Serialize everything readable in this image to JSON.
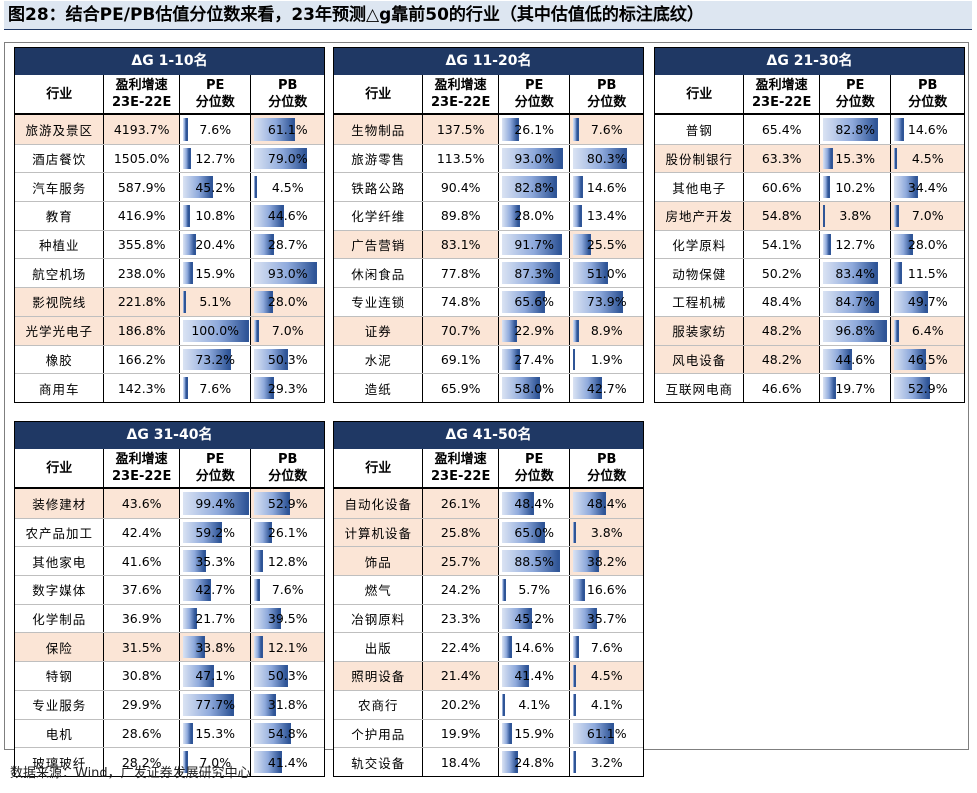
{
  "title": "图28：结合PE/PB估值分位数来看，23年预测△g靠前50的行业（其中估值低的标注底纹）",
  "headers": {
    "industry": "行业",
    "growth": "盈利增速\n23E-22E",
    "pe": "PE\n分位数",
    "pb": "PB\n分位数"
  },
  "source": "数据来源：Wind，广发证券发展研究中心",
  "colors": {
    "header_bg": "#1f3864",
    "highlight": "#fbe5d6",
    "bar_dark": "#2f5597",
    "bar_light": "#dae3f3"
  },
  "panels": [
    {
      "title": "ΔG 1-10名",
      "rows": [
        {
          "industry": "旅游及景区",
          "growth": "4193.7%",
          "pe": "7.6%",
          "pb": "61.1%",
          "pe_hl": false,
          "pb_hl": true,
          "name_hl": true
        },
        {
          "industry": "酒店餐饮",
          "growth": "1505.0%",
          "pe": "12.7%",
          "pb": "79.0%",
          "pe_hl": false,
          "pb_hl": false,
          "name_hl": false
        },
        {
          "industry": "汽车服务",
          "growth": "587.9%",
          "pe": "45.2%",
          "pb": "4.5%",
          "pe_hl": false,
          "pb_hl": false,
          "name_hl": false
        },
        {
          "industry": "教育",
          "growth": "416.9%",
          "pe": "10.8%",
          "pb": "44.6%",
          "pe_hl": false,
          "pb_hl": false,
          "name_hl": false
        },
        {
          "industry": "种植业",
          "growth": "355.8%",
          "pe": "20.4%",
          "pb": "28.7%",
          "pe_hl": false,
          "pb_hl": false,
          "name_hl": false
        },
        {
          "industry": "航空机场",
          "growth": "238.0%",
          "pe": "15.9%",
          "pb": "93.0%",
          "pe_hl": false,
          "pb_hl": false,
          "name_hl": false
        },
        {
          "industry": "影视院线",
          "growth": "221.8%",
          "pe": "5.1%",
          "pb": "28.0%",
          "pe_hl": true,
          "pb_hl": true,
          "name_hl": true
        },
        {
          "industry": "光学光电子",
          "growth": "186.8%",
          "pe": "100.0%",
          "pb": "7.0%",
          "pe_hl": false,
          "pb_hl": true,
          "name_hl": true
        },
        {
          "industry": "橡胶",
          "growth": "166.2%",
          "pe": "73.2%",
          "pb": "50.3%",
          "pe_hl": false,
          "pb_hl": false,
          "name_hl": false
        },
        {
          "industry": "商用车",
          "growth": "142.3%",
          "pe": "7.6%",
          "pb": "29.3%",
          "pe_hl": false,
          "pb_hl": false,
          "name_hl": false
        }
      ]
    },
    {
      "title": "ΔG 11-20名",
      "rows": [
        {
          "industry": "生物制品",
          "growth": "137.5%",
          "pe": "26.1%",
          "pb": "7.6%",
          "pe_hl": false,
          "pb_hl": true,
          "name_hl": true
        },
        {
          "industry": "旅游零售",
          "growth": "113.5%",
          "pe": "93.0%",
          "pb": "80.3%",
          "pe_hl": false,
          "pb_hl": false,
          "name_hl": false
        },
        {
          "industry": "铁路公路",
          "growth": "90.4%",
          "pe": "82.8%",
          "pb": "14.6%",
          "pe_hl": false,
          "pb_hl": false,
          "name_hl": false
        },
        {
          "industry": "化学纤维",
          "growth": "89.8%",
          "pe": "28.0%",
          "pb": "13.4%",
          "pe_hl": false,
          "pb_hl": false,
          "name_hl": false
        },
        {
          "industry": "广告营销",
          "growth": "83.1%",
          "pe": "91.7%",
          "pb": "25.5%",
          "pe_hl": false,
          "pb_hl": true,
          "name_hl": true
        },
        {
          "industry": "休闲食品",
          "growth": "77.8%",
          "pe": "87.3%",
          "pb": "51.0%",
          "pe_hl": false,
          "pb_hl": false,
          "name_hl": false
        },
        {
          "industry": "专业连锁",
          "growth": "74.8%",
          "pe": "65.6%",
          "pb": "73.9%",
          "pe_hl": false,
          "pb_hl": false,
          "name_hl": false
        },
        {
          "industry": "证券",
          "growth": "70.7%",
          "pe": "22.9%",
          "pb": "8.9%",
          "pe_hl": true,
          "pb_hl": true,
          "name_hl": true
        },
        {
          "industry": "水泥",
          "growth": "69.1%",
          "pe": "27.4%",
          "pb": "1.9%",
          "pe_hl": false,
          "pb_hl": false,
          "name_hl": false
        },
        {
          "industry": "造纸",
          "growth": "65.9%",
          "pe": "58.0%",
          "pb": "42.7%",
          "pe_hl": false,
          "pb_hl": false,
          "name_hl": false
        }
      ]
    },
    {
      "title": "ΔG 21-30名",
      "rows": [
        {
          "industry": "普钢",
          "growth": "65.4%",
          "pe": "82.8%",
          "pb": "14.6%",
          "pe_hl": false,
          "pb_hl": false,
          "name_hl": false
        },
        {
          "industry": "股份制银行",
          "growth": "63.3%",
          "pe": "15.3%",
          "pb": "4.5%",
          "pe_hl": true,
          "pb_hl": true,
          "name_hl": true
        },
        {
          "industry": "其他电子",
          "growth": "60.6%",
          "pe": "10.2%",
          "pb": "34.4%",
          "pe_hl": false,
          "pb_hl": false,
          "name_hl": false
        },
        {
          "industry": "房地产开发",
          "growth": "54.8%",
          "pe": "3.8%",
          "pb": "7.0%",
          "pe_hl": true,
          "pb_hl": true,
          "name_hl": true
        },
        {
          "industry": "化学原料",
          "growth": "54.1%",
          "pe": "12.7%",
          "pb": "28.0%",
          "pe_hl": false,
          "pb_hl": false,
          "name_hl": false
        },
        {
          "industry": "动物保健",
          "growth": "50.2%",
          "pe": "83.4%",
          "pb": "11.5%",
          "pe_hl": false,
          "pb_hl": false,
          "name_hl": false
        },
        {
          "industry": "工程机械",
          "growth": "48.4%",
          "pe": "84.7%",
          "pb": "49.7%",
          "pe_hl": false,
          "pb_hl": false,
          "name_hl": false
        },
        {
          "industry": "服装家纺",
          "growth": "48.2%",
          "pe": "96.8%",
          "pb": "6.4%",
          "pe_hl": false,
          "pb_hl": true,
          "name_hl": true
        },
        {
          "industry": "风电设备",
          "growth": "48.2%",
          "pe": "44.6%",
          "pb": "46.5%",
          "pe_hl": false,
          "pb_hl": true,
          "name_hl": true
        },
        {
          "industry": "互联网电商",
          "growth": "46.6%",
          "pe": "19.7%",
          "pb": "52.9%",
          "pe_hl": false,
          "pb_hl": false,
          "name_hl": false
        }
      ]
    },
    {
      "title": "ΔG 31-40名",
      "rows": [
        {
          "industry": "装修建材",
          "growth": "43.6%",
          "pe": "99.4%",
          "pb": "52.9%",
          "pe_hl": false,
          "pb_hl": true,
          "name_hl": true
        },
        {
          "industry": "农产品加工",
          "growth": "42.4%",
          "pe": "59.2%",
          "pb": "26.1%",
          "pe_hl": false,
          "pb_hl": false,
          "name_hl": false
        },
        {
          "industry": "其他家电",
          "growth": "41.6%",
          "pe": "35.3%",
          "pb": "12.8%",
          "pe_hl": false,
          "pb_hl": false,
          "name_hl": false
        },
        {
          "industry": "数字媒体",
          "growth": "37.6%",
          "pe": "42.7%",
          "pb": "7.6%",
          "pe_hl": false,
          "pb_hl": false,
          "name_hl": false
        },
        {
          "industry": "化学制品",
          "growth": "36.9%",
          "pe": "21.7%",
          "pb": "39.5%",
          "pe_hl": false,
          "pb_hl": false,
          "name_hl": false
        },
        {
          "industry": "保险",
          "growth": "31.5%",
          "pe": "33.8%",
          "pb": "12.1%",
          "pe_hl": true,
          "pb_hl": true,
          "name_hl": true
        },
        {
          "industry": "特钢",
          "growth": "30.8%",
          "pe": "47.1%",
          "pb": "50.3%",
          "pe_hl": false,
          "pb_hl": false,
          "name_hl": false
        },
        {
          "industry": "专业服务",
          "growth": "29.9%",
          "pe": "77.7%",
          "pb": "31.8%",
          "pe_hl": false,
          "pb_hl": false,
          "name_hl": false
        },
        {
          "industry": "电机",
          "growth": "28.6%",
          "pe": "15.3%",
          "pb": "54.8%",
          "pe_hl": false,
          "pb_hl": false,
          "name_hl": false
        },
        {
          "industry": "玻璃玻纤",
          "growth": "28.2%",
          "pe": "7.0%",
          "pb": "41.4%",
          "pe_hl": false,
          "pb_hl": false,
          "name_hl": false
        }
      ]
    },
    {
      "title": "ΔG 41-50名",
      "rows": [
        {
          "industry": "自动化设备",
          "growth": "26.1%",
          "pe": "48.4%",
          "pb": "48.4%",
          "pe_hl": false,
          "pb_hl": true,
          "name_hl": true
        },
        {
          "industry": "计算机设备",
          "growth": "25.8%",
          "pe": "65.0%",
          "pb": "3.8%",
          "pe_hl": false,
          "pb_hl": true,
          "name_hl": true
        },
        {
          "industry": "饰品",
          "growth": "25.7%",
          "pe": "88.5%",
          "pb": "38.2%",
          "pe_hl": false,
          "pb_hl": true,
          "name_hl": true
        },
        {
          "industry": "燃气",
          "growth": "24.2%",
          "pe": "5.7%",
          "pb": "16.6%",
          "pe_hl": false,
          "pb_hl": false,
          "name_hl": false
        },
        {
          "industry": "冶钢原料",
          "growth": "23.3%",
          "pe": "45.2%",
          "pb": "35.7%",
          "pe_hl": false,
          "pb_hl": false,
          "name_hl": false
        },
        {
          "industry": "出版",
          "growth": "22.4%",
          "pe": "14.6%",
          "pb": "7.6%",
          "pe_hl": false,
          "pb_hl": false,
          "name_hl": false
        },
        {
          "industry": "照明设备",
          "growth": "21.4%",
          "pe": "41.4%",
          "pb": "4.5%",
          "pe_hl": false,
          "pb_hl": true,
          "name_hl": true
        },
        {
          "industry": "农商行",
          "growth": "20.2%",
          "pe": "4.1%",
          "pb": "4.1%",
          "pe_hl": false,
          "pb_hl": false,
          "name_hl": false
        },
        {
          "industry": "个护用品",
          "growth": "19.9%",
          "pe": "15.9%",
          "pb": "61.1%",
          "pe_hl": false,
          "pb_hl": false,
          "name_hl": false
        },
        {
          "industry": "轨交设备",
          "growth": "18.4%",
          "pe": "24.8%",
          "pb": "3.2%",
          "pe_hl": false,
          "pb_hl": false,
          "name_hl": false
        }
      ]
    }
  ]
}
